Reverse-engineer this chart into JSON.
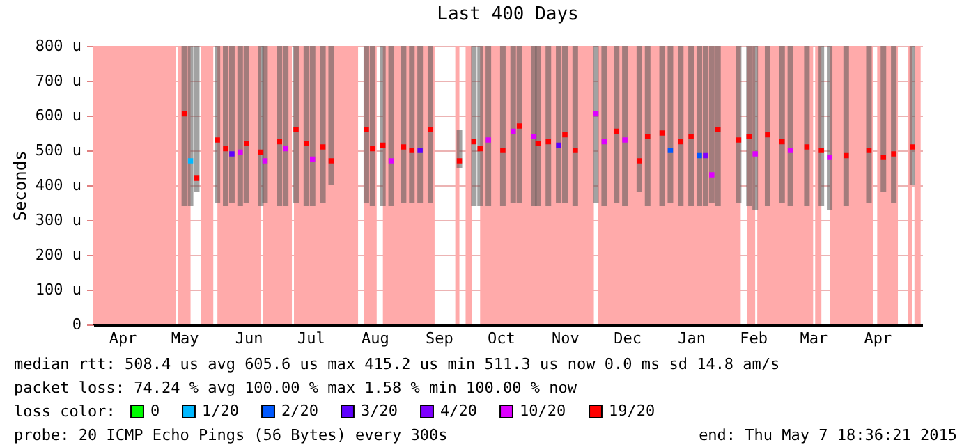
{
  "chart_data": {
    "type": "scatter",
    "title": "Last 400 Days",
    "ylabel": "Seconds",
    "legend_title": "loss color:",
    "legend": "bottom",
    "grid": "y",
    "marker": "square",
    "xlim": [
      "2014-04-02",
      "2015-05-07T18:36"
    ],
    "xticks": [
      {
        "value": "2014-04-16",
        "label": "Apr"
      },
      {
        "value": "2014-05-16",
        "label": "May"
      },
      {
        "value": "2014-06-16",
        "label": "Jun"
      },
      {
        "value": "2014-07-16",
        "label": "Jul"
      },
      {
        "value": "2014-08-16",
        "label": "Aug"
      },
      {
        "value": "2014-09-16",
        "label": "Sep"
      },
      {
        "value": "2014-10-16",
        "label": "Oct"
      },
      {
        "value": "2014-11-16",
        "label": "Nov"
      },
      {
        "value": "2014-12-16",
        "label": "Dec"
      },
      {
        "value": "2015-01-16",
        "label": "Jan"
      },
      {
        "value": "2015-02-15",
        "label": "Feb"
      },
      {
        "value": "2015-03-16",
        "label": "Mar"
      },
      {
        "value": "2015-04-16",
        "label": "Apr"
      }
    ],
    "ylim": [
      0,
      800
    ],
    "yticks": [
      0,
      {
        "value": 100,
        "label": "100 u"
      },
      {
        "value": 200,
        "label": "200 u"
      },
      {
        "value": 300,
        "label": "300 u"
      },
      {
        "value": 400,
        "label": "400 u"
      },
      {
        "value": 500,
        "label": "500 u"
      },
      {
        "value": 600,
        "label": "600 u"
      },
      {
        "value": 700,
        "label": "700 u"
      },
      {
        "value": 800,
        "label": "800 u"
      }
    ],
    "series": [
      {
        "name": "0",
        "color": "#00ff00"
      },
      {
        "name": "1/20",
        "color": "#00b8ff",
        "x": [
          "2014-05-19"
        ],
        "values": [
          470
        ],
        "errors": [
          [
            340,
            800
          ]
        ]
      },
      {
        "name": "2/20",
        "color": "#0059ff",
        "x": [
          "2015-01-06",
          "2015-01-20"
        ],
        "values": [
          500,
          485
        ],
        "errors": [
          [
            350,
            800
          ],
          [
            340,
            800
          ]
        ]
      },
      {
        "name": "3/20",
        "color": "#5e00ff",
        "x": [
          "2014-06-08",
          "2014-09-07",
          "2014-11-13"
        ],
        "values": [
          490,
          500,
          515
        ],
        "errors": [
          [
            350,
            800
          ],
          [
            350,
            800
          ],
          [
            350,
            800
          ]
        ]
      },
      {
        "name": "4/20",
        "color": "#7e00ff",
        "x": [
          "2015-01-23"
        ],
        "values": [
          485
        ],
        "errors": [
          [
            340,
            800
          ]
        ]
      },
      {
        "name": "10/20",
        "color": "#dd00ff",
        "x": [
          "2014-06-12",
          "2014-06-24",
          "2014-07-04",
          "2014-07-17",
          "2014-08-24",
          "2014-10-10",
          "2014-10-22",
          "2014-11-01",
          "2014-12-01",
          "2014-12-05",
          "2014-12-15",
          "2015-01-26",
          "2015-02-16",
          "2015-03-05",
          "2015-03-24"
        ],
        "values": [
          495,
          470,
          505,
          475,
          470,
          530,
          555,
          540,
          605,
          525,
          530,
          430,
          490,
          500,
          480
        ],
        "errors": [
          [
            340,
            800
          ],
          [
            350,
            800
          ],
          [
            340,
            800
          ],
          [
            340,
            800
          ],
          [
            340,
            800
          ],
          [
            340,
            800
          ],
          [
            350,
            800
          ],
          [
            340,
            800
          ],
          [
            350,
            800
          ],
          [
            340,
            800
          ],
          [
            340,
            800
          ],
          [
            350,
            800
          ],
          [
            330,
            800
          ],
          [
            340,
            800
          ],
          [
            330,
            800
          ]
        ]
      },
      {
        "name": "19/20",
        "color": "#ff0000",
        "x": [
          "2014-05-16",
          "2014-05-22",
          "2014-06-01",
          "2014-06-05",
          "2014-06-15",
          "2014-06-22",
          "2014-07-01",
          "2014-07-09",
          "2014-07-14",
          "2014-07-22",
          "2014-07-26",
          "2014-08-12",
          "2014-08-15",
          "2014-08-20",
          "2014-08-30",
          "2014-09-03",
          "2014-09-12",
          "2014-09-26",
          "2014-10-03",
          "2014-10-06",
          "2014-10-17",
          "2014-10-25",
          "2014-11-03",
          "2014-11-08",
          "2014-11-16",
          "2014-11-21",
          "2014-12-11",
          "2014-12-22",
          "2014-12-26",
          "2015-01-02",
          "2015-01-11",
          "2015-01-16",
          "2015-01-29",
          "2015-02-08",
          "2015-02-13",
          "2015-02-22",
          "2015-03-01",
          "2015-03-13",
          "2015-03-20",
          "2015-04-01",
          "2015-04-12",
          "2015-04-19",
          "2015-04-24",
          "2015-05-03"
        ],
        "values": [
          605,
          420,
          530,
          505,
          520,
          495,
          525,
          560,
          520,
          510,
          470,
          560,
          505,
          515,
          510,
          500,
          560,
          470,
          525,
          505,
          500,
          570,
          520,
          525,
          545,
          500,
          555,
          470,
          540,
          550,
          525,
          540,
          560,
          530,
          540,
          545,
          525,
          510,
          500,
          485,
          500,
          480,
          490,
          510
        ],
        "errors": [
          [
            340,
            800
          ],
          [
            380,
            800
          ],
          [
            350,
            800
          ],
          [
            340,
            800
          ],
          [
            350,
            800
          ],
          [
            340,
            800
          ],
          [
            340,
            800
          ],
          [
            350,
            800
          ],
          [
            340,
            800
          ],
          [
            350,
            800
          ],
          [
            400,
            800
          ],
          [
            350,
            800
          ],
          [
            340,
            800
          ],
          [
            340,
            800
          ],
          [
            350,
            800
          ],
          [
            350,
            800
          ],
          [
            350,
            800
          ],
          [
            450,
            560
          ],
          [
            340,
            800
          ],
          [
            340,
            800
          ],
          [
            340,
            800
          ],
          [
            350,
            800
          ],
          [
            340,
            800
          ],
          [
            340,
            800
          ],
          [
            350,
            800
          ],
          [
            340,
            800
          ],
          [
            350,
            800
          ],
          [
            380,
            800
          ],
          [
            340,
            800
          ],
          [
            340,
            800
          ],
          [
            340,
            800
          ],
          [
            340,
            800
          ],
          [
            340,
            800
          ],
          [
            350,
            800
          ],
          [
            340,
            800
          ],
          [
            340,
            800
          ],
          [
            350,
            800
          ],
          [
            340,
            800
          ],
          [
            340,
            800
          ],
          [
            340,
            800
          ],
          [
            350,
            800
          ],
          [
            380,
            800
          ],
          [
            350,
            800
          ],
          [
            400,
            800
          ]
        ]
      }
    ],
    "bands": [
      {
        "axis": "x",
        "from": "2014-04-02",
        "to": "2014-05-12",
        "color": "#ffaaaa"
      },
      {
        "axis": "x",
        "from": "2014-05-13",
        "to": "2014-05-19",
        "color": "#ffaaaa"
      },
      {
        "axis": "x",
        "from": "2014-05-24",
        "to": "2014-05-30",
        "color": "#ffaaaa"
      },
      {
        "axis": "x",
        "from": "2014-06-01",
        "to": "2014-06-22",
        "color": "#ffaaaa"
      },
      {
        "axis": "x",
        "from": "2014-06-23",
        "to": "2014-07-07",
        "color": "#ffaaaa"
      },
      {
        "axis": "x",
        "from": "2014-07-08",
        "to": "2014-08-08",
        "color": "#ffaaaa"
      },
      {
        "axis": "x",
        "from": "2014-08-11",
        "to": "2014-08-17",
        "color": "#ffaaaa"
      },
      {
        "axis": "x",
        "from": "2014-08-20",
        "to": "2014-09-14",
        "color": "#ffaaaa"
      },
      {
        "axis": "x",
        "from": "2014-09-24",
        "to": "2014-09-26",
        "color": "#ffaaaa"
      },
      {
        "axis": "x",
        "from": "2014-09-29",
        "to": "2014-10-02",
        "color": "#ffaaaa"
      },
      {
        "axis": "x",
        "from": "2014-10-06",
        "to": "2014-11-30",
        "color": "#ffaaaa"
      },
      {
        "axis": "x",
        "from": "2014-12-02",
        "to": "2015-02-09",
        "color": "#ffaaaa"
      },
      {
        "axis": "x",
        "from": "2015-02-12",
        "to": "2015-02-16",
        "color": "#ffaaaa"
      },
      {
        "axis": "x",
        "from": "2015-02-17",
        "to": "2015-03-16",
        "color": "#ffaaaa"
      },
      {
        "axis": "x",
        "from": "2015-03-17",
        "to": "2015-03-20",
        "color": "#ffaaaa"
      },
      {
        "axis": "x",
        "from": "2015-03-24",
        "to": "2015-04-14",
        "color": "#ffaaaa"
      },
      {
        "axis": "x",
        "from": "2015-04-16",
        "to": "2015-04-26",
        "color": "#ffaaaa"
      },
      {
        "axis": "x",
        "from": "2015-05-01",
        "to": "2015-05-03",
        "color": "#ffaaaa"
      },
      {
        "axis": "x",
        "from": "2015-05-04",
        "to": "2015-05-07",
        "color": "#ffaaaa"
      }
    ],
    "annotations": [
      "median rtt:  508.4 us avg  605.6 us max  415.2 us min  511.3 us now  0.0 ms sd  14.8   am/s",
      "packet loss: 74.24 % avg  100.00 % max  1.58 % min  100.00 % now",
      "probe:        20 ICMP Echo Pings (56 Bytes) every 300s",
      "end: Thu May  7 18:36:21 2015"
    ]
  }
}
